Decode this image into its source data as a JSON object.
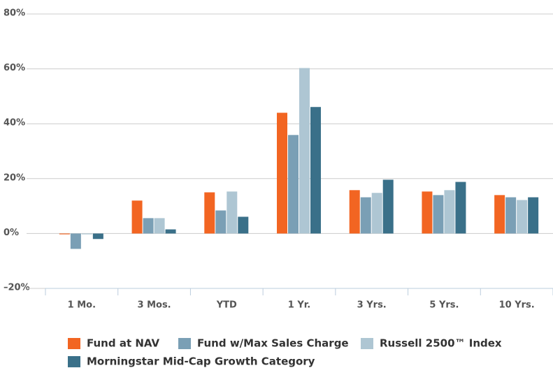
{
  "chart_data": {
    "type": "bar",
    "categories": [
      "1 Mo.",
      "3 Mos.",
      "YTD",
      "1 Yr.",
      "3 Yrs.",
      "5 Yrs.",
      "10 Yrs."
    ],
    "series": [
      {
        "name": "Fund at NAV",
        "color": "#f26522",
        "values": [
          -0.3,
          12.0,
          15.0,
          44.0,
          15.8,
          15.3,
          14.0
        ]
      },
      {
        "name": "Fund w/Max Sales Charge",
        "color": "#7a9fb5",
        "values": [
          -5.6,
          5.6,
          8.4,
          35.9,
          13.2,
          14.0,
          13.2
        ]
      },
      {
        "name": "Russell 2500™ Index",
        "color": "#aec6d3",
        "values": [
          -0.3,
          5.6,
          15.3,
          60.3,
          14.8,
          15.8,
          12.2
        ]
      },
      {
        "name": "Morningstar Mid-Cap Growth Category",
        "color": "#3a7089",
        "values": [
          -2.0,
          1.5,
          6.1,
          46.1,
          19.6,
          18.8,
          13.2
        ]
      }
    ],
    "ylim": [
      -20,
      80
    ],
    "yticks": [
      {
        "value": -20,
        "label": "–20%"
      },
      {
        "value": 0,
        "label": "0%"
      },
      {
        "value": 20,
        "label": "20%"
      },
      {
        "value": 40,
        "label": "40%"
      },
      {
        "value": 60,
        "label": "60%"
      },
      {
        "value": 80,
        "label": "80%"
      }
    ],
    "grid": true
  }
}
